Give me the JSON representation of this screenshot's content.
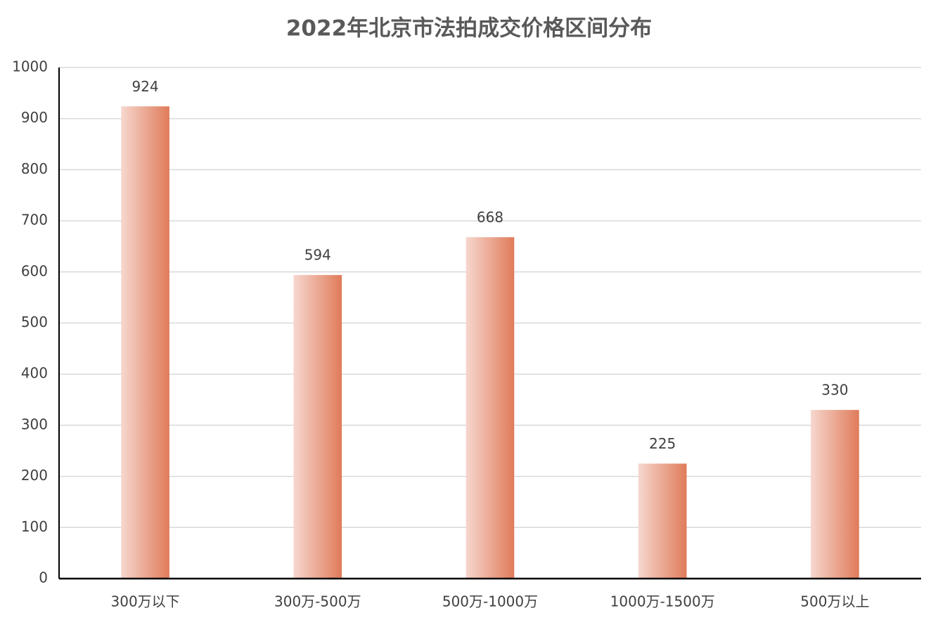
{
  "chart_data": {
    "type": "bar",
    "title": "2022年北京市法拍成交价格区间分布",
    "categories": [
      "300万以下",
      "300万-500万",
      "500万-1000万",
      "1000万-1500万",
      "500万以上"
    ],
    "values": [
      924,
      594,
      668,
      225,
      330
    ],
    "color": "#e07b5a",
    "ylim": [
      0,
      1000
    ],
    "yticks": [
      0,
      100,
      200,
      300,
      400,
      500,
      600,
      700,
      800,
      900,
      1000
    ],
    "grid": true
  }
}
